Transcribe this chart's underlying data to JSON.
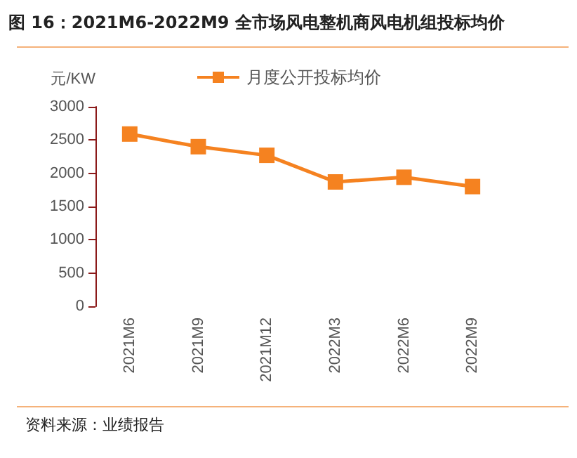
{
  "chart_data": {
    "type": "line",
    "title": "图 16：2021M6-2022M9 全市场风电整机商风电机组投标均价",
    "ylabel": "元/KW",
    "categories": [
      "2021M6",
      "2021M9",
      "2021M12",
      "2022M3",
      "2022M6",
      "2022M9"
    ],
    "series": [
      {
        "name": "月度公开投标均价",
        "color": "#f58220",
        "values": [
          2590,
          2400,
          2270,
          1870,
          1940,
          1800
        ]
      }
    ],
    "ylim": [
      0,
      3000
    ],
    "yticks": [
      0,
      500,
      1000,
      1500,
      2000,
      2500,
      3000
    ],
    "grid": false,
    "legend": "top",
    "marker": "square",
    "line_style": "solid",
    "annotations": [
      "资料来源：业绩报告"
    ]
  }
}
